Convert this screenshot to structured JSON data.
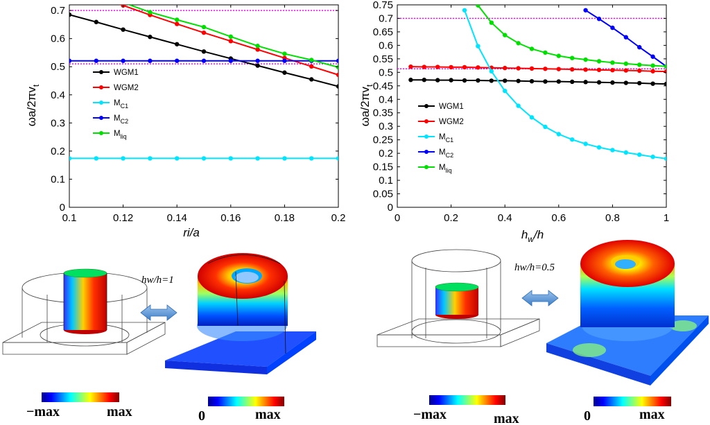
{
  "chart_data": [
    {
      "type": "line",
      "x": [
        0.1,
        0.11,
        0.12,
        0.13,
        0.14,
        0.15,
        0.16,
        0.17,
        0.18,
        0.19,
        0.2
      ],
      "xlabel": "ri/a",
      "ylabel": "ωa/2πvt",
      "xlim": [
        0.1,
        0.2
      ],
      "ylim": [
        0,
        0.72
      ],
      "xticks": [
        "0.1",
        "0.12",
        "0.14",
        "0.16",
        "0.18",
        "0.2"
      ],
      "yticks": [
        "0",
        "0.1",
        "0.2",
        "0.3",
        "0.4",
        "0.5",
        "0.6",
        "0.7"
      ],
      "legend_position": "center-left",
      "hlines": [
        0.7,
        0.51
      ],
      "series": [
        {
          "name": "WGM1",
          "color": "#000000",
          "values": [
            0.685,
            0.659,
            0.632,
            0.606,
            0.58,
            0.554,
            0.529,
            0.504,
            0.479,
            0.455,
            0.43
          ]
        },
        {
          "name": "WGM2",
          "color": "#ff0000",
          "values": [
            0.79,
            0.752,
            0.718,
            0.684,
            0.652,
            0.621,
            0.591,
            0.561,
            0.531,
            0.501,
            0.471
          ]
        },
        {
          "name": "MC1",
          "name_base": "M",
          "name_sub": "C1",
          "color": "#00e5ff",
          "values": [
            0.174,
            0.174,
            0.174,
            0.174,
            0.174,
            0.174,
            0.174,
            0.174,
            0.174,
            0.174,
            0.174
          ]
        },
        {
          "name": "MC2",
          "name_base": "M",
          "name_sub": "C2",
          "color": "#0000ff",
          "values": [
            0.521,
            0.521,
            0.521,
            0.521,
            0.521,
            0.521,
            0.521,
            0.521,
            0.521,
            0.521,
            0.521
          ]
        },
        {
          "name": "Mliq",
          "name_base": "M",
          "name_sub": "liq",
          "color": "#00e000",
          "values": [
            null,
            null,
            0.728,
            0.694,
            0.667,
            0.641,
            0.607,
            0.574,
            0.546,
            0.524,
            0.498
          ]
        }
      ]
    },
    {
      "type": "line",
      "x": [
        0.05,
        0.1,
        0.15,
        0.2,
        0.25,
        0.3,
        0.35,
        0.4,
        0.45,
        0.5,
        0.55,
        0.6,
        0.65,
        0.7,
        0.75,
        0.8,
        0.85,
        0.9,
        0.95,
        1.0
      ],
      "xlabel": "hw/h",
      "ylabel": "ωa/2πvt",
      "xlim": [
        0,
        1
      ],
      "ylim": [
        0,
        0.75
      ],
      "xticks": [
        "0",
        "0.2",
        "0.4",
        "0.6",
        "0.8",
        "1"
      ],
      "yticks": [
        "0",
        "0.05",
        "0.1",
        "0.15",
        "0.2",
        "0.25",
        "0.3",
        "0.35",
        "0.4",
        "0.45",
        "0.5",
        "0.55",
        "0.6",
        "0.65",
        "0.7",
        "0.75"
      ],
      "ytick_values": [
        0,
        0.05,
        0.1,
        0.15,
        0.2,
        0.25,
        0.3,
        0.35,
        0.4,
        0.45,
        0.5,
        0.55,
        0.6,
        0.65,
        0.7,
        0.75
      ],
      "legend_position": "center-left",
      "hlines": [
        0.7,
        0.513
      ],
      "series": [
        {
          "name": "WGM1",
          "color": "#000000",
          "values": [
            0.472,
            0.472,
            0.471,
            0.471,
            0.47,
            0.47,
            0.469,
            0.469,
            0.468,
            0.467,
            0.466,
            0.466,
            0.465,
            0.464,
            0.463,
            0.462,
            0.461,
            0.46,
            0.458,
            0.457
          ]
        },
        {
          "name": "WGM2",
          "color": "#ff0000",
          "values": [
            0.521,
            0.52,
            0.52,
            0.519,
            0.519,
            0.518,
            0.517,
            0.516,
            0.515,
            0.514,
            0.513,
            0.512,
            0.511,
            0.51,
            0.509,
            0.508,
            0.507,
            0.506,
            0.504,
            0.503
          ]
        },
        {
          "name": "MC1",
          "name_base": "M",
          "name_sub": "C1",
          "color": "#00e5ff",
          "values": [
            null,
            null,
            null,
            null,
            0.73,
            0.597,
            0.504,
            0.431,
            0.376,
            0.333,
            0.298,
            0.271,
            0.251,
            0.235,
            0.222,
            0.212,
            0.203,
            0.195,
            0.187,
            0.18
          ]
        },
        {
          "name": "MC2",
          "name_base": "M",
          "name_sub": "C2",
          "color": "#0000ff",
          "values": [
            null,
            null,
            null,
            null,
            null,
            null,
            null,
            null,
            null,
            null,
            null,
            null,
            null,
            0.73,
            0.698,
            0.665,
            0.63,
            0.593,
            0.558,
            0.522
          ]
        },
        {
          "name": "Mliq",
          "name_base": "M",
          "name_sub": "liq",
          "color": "#00e000",
          "values": [
            null,
            null,
            null,
            null,
            null,
            0.748,
            0.684,
            0.638,
            0.608,
            0.587,
            0.573,
            0.561,
            0.553,
            0.547,
            0.541,
            0.536,
            0.532,
            0.528,
            0.525,
            0.522
          ]
        }
      ]
    }
  ],
  "ylabel_parts": {
    "base": "ωa/2πv",
    "sub": "t"
  },
  "xlabel_parts_left": {
    "text": "ri/a"
  },
  "xlabel_parts_right": {
    "h": "h",
    "sub": "w",
    "rest": "/h"
  },
  "annotations": {
    "left_ratio": "hw/h=1",
    "right_ratio": "hw/h=0.5"
  },
  "colorbars": {
    "left_sym": {
      "min": "−max",
      "max": "max"
    },
    "left_abs": {
      "min": "0",
      "max": "max"
    },
    "right_sym": {
      "min": "−max",
      "max": "max"
    },
    "right_abs": {
      "min": "0",
      "max": "max"
    }
  },
  "colors": {
    "dotted_line": "#ff00ff",
    "arrow": "#5b9bd5",
    "jet_low": "#00008f",
    "jet_high": "#800000"
  }
}
